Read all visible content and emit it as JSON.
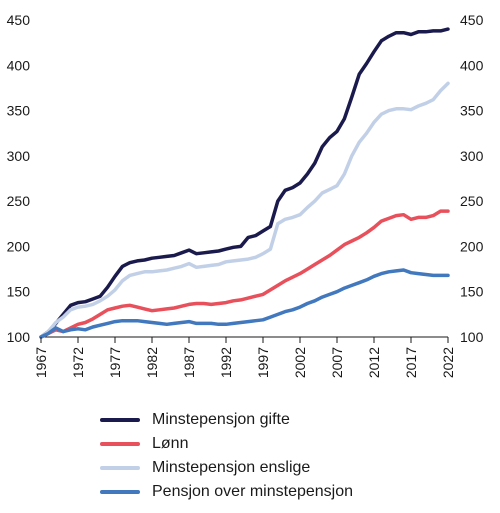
{
  "chart_data": {
    "type": "line",
    "title": "",
    "xlabel": "",
    "ylabel": "",
    "xlim": [
      1967,
      2022
    ],
    "ylim": [
      100,
      450
    ],
    "x_ticks": [
      1967,
      1972,
      1977,
      1982,
      1987,
      1992,
      1997,
      2002,
      2007,
      2012,
      2017,
      2022
    ],
    "y_ticks": [
      100,
      150,
      200,
      250,
      300,
      350,
      400,
      450
    ],
    "grid": false,
    "legend": "bottom",
    "x": [
      1967,
      1968,
      1969,
      1970,
      1971,
      1972,
      1973,
      1974,
      1975,
      1976,
      1977,
      1978,
      1979,
      1980,
      1981,
      1982,
      1983,
      1984,
      1985,
      1986,
      1987,
      1988,
      1989,
      1990,
      1991,
      1992,
      1993,
      1994,
      1995,
      1996,
      1997,
      1998,
      1999,
      2000,
      2001,
      2002,
      2003,
      2004,
      2005,
      2006,
      2007,
      2008,
      2009,
      2010,
      2011,
      2012,
      2013,
      2014,
      2015,
      2016,
      2017,
      2018,
      2019,
      2020,
      2021,
      2022
    ],
    "series": [
      {
        "name": "Minstepensjon gifte",
        "color": "#1b1a4d",
        "values": [
          100,
          106,
          115,
          125,
          135,
          138,
          139,
          142,
          145,
          155,
          167,
          178,
          182,
          184,
          185,
          187,
          188,
          189,
          190,
          193,
          196,
          192,
          193,
          194,
          195,
          197,
          199,
          200,
          210,
          212,
          217,
          222,
          250,
          262,
          265,
          270,
          280,
          292,
          310,
          320,
          327,
          341,
          365,
          390,
          402,
          415,
          427,
          432,
          436,
          436,
          434,
          437,
          437,
          438,
          438,
          440
        ]
      },
      {
        "name": "Lønn",
        "color": "#e8505b",
        "values": [
          100,
          104,
          108,
          106,
          110,
          114,
          116,
          120,
          125,
          130,
          132,
          134,
          135,
          133,
          131,
          129,
          130,
          131,
          132,
          134,
          136,
          137,
          137,
          136,
          137,
          138,
          140,
          141,
          143,
          145,
          147,
          152,
          157,
          162,
          166,
          170,
          175,
          180,
          185,
          190,
          196,
          202,
          206,
          210,
          215,
          221,
          228,
          231,
          234,
          235,
          230,
          232,
          232,
          234,
          239,
          239
        ]
      },
      {
        "name": "Minstepensjon enslige",
        "color": "#c2d0e7",
        "values": [
          100,
          106,
          116,
          122,
          130,
          133,
          134,
          136,
          140,
          145,
          152,
          162,
          168,
          170,
          172,
          172,
          173,
          174,
          176,
          178,
          181,
          177,
          178,
          179,
          180,
          183,
          184,
          185,
          186,
          188,
          192,
          197,
          225,
          230,
          232,
          235,
          243,
          250,
          259,
          263,
          267,
          280,
          300,
          315,
          325,
          337,
          346,
          350,
          352,
          352,
          351,
          355,
          358,
          362,
          372,
          380
        ]
      },
      {
        "name": "Pensjon over minstepensjon",
        "color": "#4178be",
        "values": [
          100,
          104,
          110,
          106,
          108,
          109,
          108,
          111,
          113,
          115,
          117,
          118,
          118,
          118,
          117,
          116,
          115,
          114,
          115,
          116,
          117,
          115,
          115,
          115,
          114,
          114,
          115,
          116,
          117,
          118,
          119,
          122,
          125,
          128,
          130,
          133,
          137,
          140,
          144,
          147,
          150,
          154,
          157,
          160,
          163,
          167,
          170,
          172,
          173,
          174,
          171,
          170,
          169,
          168,
          168,
          168
        ]
      }
    ]
  }
}
